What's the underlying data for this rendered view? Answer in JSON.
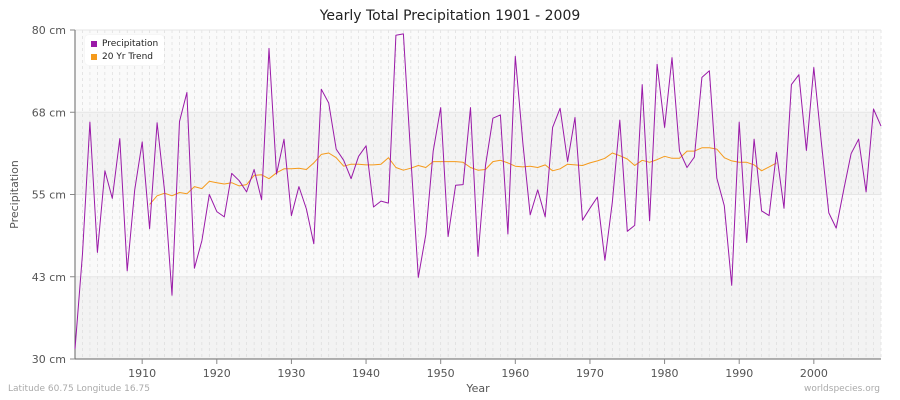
{
  "chart_data": {
    "type": "line",
    "title": "Yearly Total Precipitation 1901 - 2009",
    "xlabel": "Year",
    "ylabel": "Precipitation",
    "xlim": [
      1901,
      2009
    ],
    "ylim": [
      30,
      80
    ],
    "yticks": [
      "30 cm",
      "43 cm",
      "55 cm",
      "68 cm",
      "80 cm"
    ],
    "ytick_values": [
      30,
      42.5,
      55,
      67.5,
      80
    ],
    "xticks": [
      "1910",
      "1920",
      "1930",
      "1940",
      "1950",
      "1960",
      "1970",
      "1980",
      "1990",
      "2000"
    ],
    "legend_position": "top-left",
    "grid": true,
    "series": [
      {
        "name": "Precipitation",
        "color": "#9a1aa8",
        "x_start": 1901,
        "values": [
          31.5,
          46,
          66,
          46.2,
          58.6,
          54.4,
          63.5,
          43.4,
          55.7,
          63,
          49.8,
          65.9,
          55.5,
          39.7,
          66.1,
          70.5,
          43.8,
          48,
          55,
          52.4,
          51.6,
          58.2,
          57.1,
          55.4,
          58.8,
          54.2,
          77.2,
          58.1,
          63.4,
          51.8,
          56.2,
          52.8,
          47.5,
          71,
          68.9,
          61.9,
          60.2,
          57.4,
          60.8,
          62.4,
          53.1,
          54,
          53.7,
          79.2,
          79.4,
          60.7,
          42.4,
          48.9,
          61.6,
          68.2,
          48.6,
          56.4,
          56.5,
          68.2,
          45.6,
          59.4,
          66.6,
          67.1,
          49,
          76,
          62.9,
          51.9,
          55.7,
          51.6,
          65.2,
          68.1,
          60,
          66.7,
          51.1,
          52.9,
          54.6,
          45,
          53.8,
          66.3,
          49.4,
          50.3,
          71.7,
          51,
          74.8,
          65.2,
          75.8,
          61.6,
          59.1,
          60.7,
          72.8,
          73.8,
          57.5,
          53.3,
          41.2,
          66,
          47.7,
          63.4,
          52.5,
          51.8,
          61.4,
          52.9,
          71.7,
          73.2,
          61.7,
          74.3,
          63,
          52.2,
          49.9,
          55.7,
          61.2,
          63.4,
          55.4,
          68,
          65.4
        ]
      },
      {
        "name": "20 Yr Trend",
        "color": "#f59a1b",
        "x_start": 1911,
        "values": [
          53.5,
          54.8,
          55.2,
          54.8,
          55.3,
          55.1,
          56.2,
          55.9,
          57,
          56.8,
          56.6,
          56.8,
          56.3,
          56.5,
          57.9,
          58,
          57.4,
          58.3,
          58.9,
          58.9,
          59,
          58.8,
          59.8,
          61.1,
          61.3,
          60.6,
          59.3,
          59.6,
          59.6,
          59.5,
          59.5,
          59.6,
          60.6,
          59.1,
          58.7,
          59,
          59.4,
          59.1,
          60,
          60,
          60,
          60,
          59.9,
          59.1,
          58.7,
          58.8,
          60,
          60.2,
          59.8,
          59.3,
          59.2,
          59.3,
          59.1,
          59.5,
          58.6,
          58.9,
          59.6,
          59.5,
          59.4,
          59.8,
          60.1,
          60.5,
          61.3,
          60.9,
          60.4,
          59.4,
          60.2,
          59.9,
          60.3,
          60.8,
          60.5,
          60.5,
          61.6,
          61.6,
          62.1,
          62.1,
          61.9,
          60.6,
          60.1,
          59.9,
          59.9,
          59.5,
          58.6,
          59.2,
          59.8
        ]
      }
    ]
  },
  "labels": {
    "title": "Yearly Total Precipitation 1901 - 2009",
    "xlabel": "Year",
    "ylabel": "Precipitation",
    "legend": [
      "Precipitation",
      "20 Yr Trend"
    ],
    "footer_left": "Latitude 60.75 Longitude 16.75",
    "footer_right": "worldspecies.org"
  }
}
